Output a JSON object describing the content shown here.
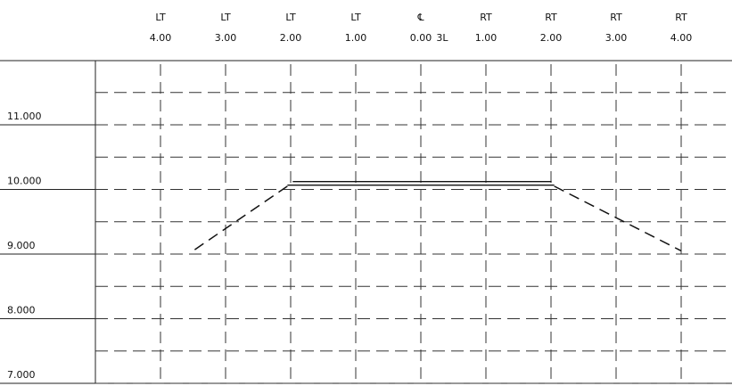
{
  "offsets": [
    {
      "side": "LT",
      "value": "4.00"
    },
    {
      "side": "LT",
      "value": "3.00"
    },
    {
      "side": "LT",
      "value": "2.00"
    },
    {
      "side": "LT",
      "value": "1.00"
    },
    {
      "side": "℄",
      "value": "0.00"
    },
    {
      "side": "RT",
      "value": "1.00"
    },
    {
      "side": "RT",
      "value": "2.00"
    },
    {
      "side": "RT",
      "value": "3.00"
    },
    {
      "side": "RT",
      "value": "4.00"
    }
  ],
  "centerline_extra_label": "3L",
  "elevations": [
    "11.000",
    "10.000",
    "9.000",
    "8.000",
    "7.000"
  ],
  "profile": {
    "top_surface": {
      "from_offset": -2.05,
      "to_offset": 2.05,
      "elevation": 10.08
    },
    "left_slope": {
      "from": {
        "offset": -2.05,
        "elevation": 10.05
      },
      "to": {
        "offset": -3.5,
        "elevation": 9.05
      }
    },
    "right_slope": {
      "from": {
        "offset": 2.05,
        "elevation": 10.05
      },
      "to": {
        "offset": 4.0,
        "elevation": 9.05
      }
    }
  }
}
